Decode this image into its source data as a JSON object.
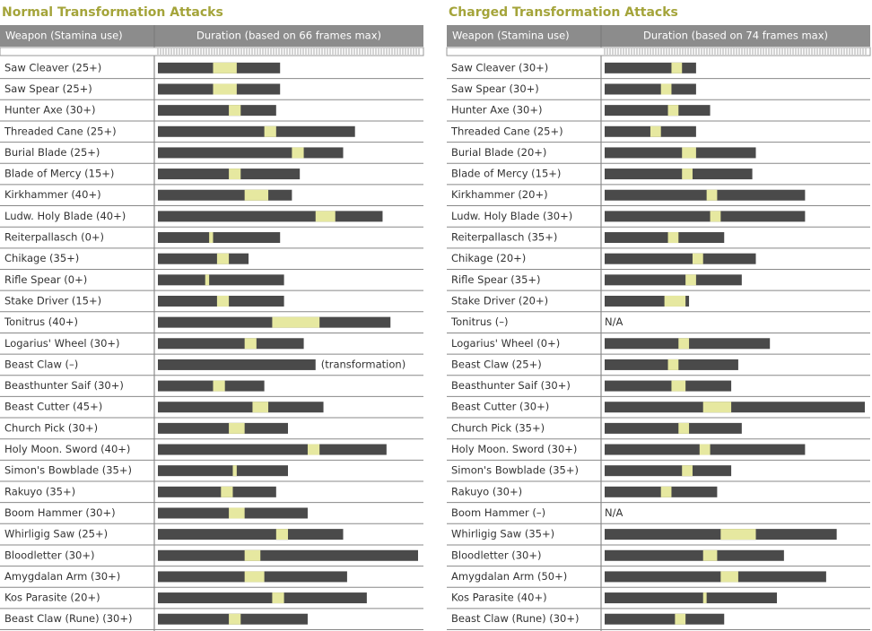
{
  "panels": [
    {
      "title": "Normal Transformation Attacks",
      "headers": [
        "Weapon (Stamina use)",
        "Duration (based on 66 frames max)"
      ],
      "xlim": [
        0,
        66
      ],
      "rows": [
        {
          "weapon": "Saw Cleaver (25+)",
          "total": 31,
          "active": [
            14,
            20
          ]
        },
        {
          "weapon": "Saw Spear (25+)",
          "total": 31,
          "active": [
            14,
            20
          ]
        },
        {
          "weapon": "Hunter Axe (30+)",
          "total": 30,
          "active": [
            18,
            21
          ]
        },
        {
          "weapon": "Threaded Cane (25+)",
          "total": 50,
          "active": [
            27,
            30
          ]
        },
        {
          "weapon": "Burial Blade (25+)",
          "total": 47,
          "active": [
            34,
            37
          ]
        },
        {
          "weapon": "Blade of Mercy (15+)",
          "total": 36,
          "active": [
            18,
            21
          ]
        },
        {
          "weapon": "Kirkhammer (40+)",
          "total": 34,
          "active": [
            22,
            28
          ]
        },
        {
          "weapon": "Ludw. Holy Blade (40+)",
          "total": 57,
          "active": [
            40,
            45
          ]
        },
        {
          "weapon": "Reiterpallasch (0+)",
          "total": 31,
          "active": [
            13,
            14
          ]
        },
        {
          "weapon": "Chikage (35+)",
          "total": 23,
          "active": [
            15,
            18
          ]
        },
        {
          "weapon": "Rifle Spear (0+)",
          "total": 32,
          "active": [
            12,
            13
          ]
        },
        {
          "weapon": "Stake Driver (15+)",
          "total": 32,
          "active": [
            15,
            18
          ]
        },
        {
          "weapon": "Tonitrus (40+)",
          "total": 59,
          "active": [
            29,
            41
          ]
        },
        {
          "weapon": "Logarius' Wheel (30+)",
          "total": 37,
          "active": [
            22,
            25
          ]
        },
        {
          "weapon": "Beast Claw (–)",
          "total": 40,
          "note": "(transformation)"
        },
        {
          "weapon": "Beasthunter Saif (30+)",
          "total": 27,
          "active": [
            14,
            17
          ]
        },
        {
          "weapon": "Beast Cutter (45+)",
          "total": 42,
          "active": [
            24,
            28
          ]
        },
        {
          "weapon": "Church Pick (30+)",
          "total": 33,
          "active": [
            18,
            22
          ]
        },
        {
          "weapon": "Holy Moon. Sword (40+)",
          "total": 58,
          "active": [
            38,
            41
          ]
        },
        {
          "weapon": "Simon's Bowblade (35+)",
          "total": 33,
          "active": [
            19,
            20
          ]
        },
        {
          "weapon": "Rakuyo (35+)",
          "total": 30,
          "active": [
            16,
            19
          ]
        },
        {
          "weapon": "Boom Hammer (30+)",
          "total": 38,
          "active": [
            18,
            22
          ]
        },
        {
          "weapon": "Whirligig Saw (25+)",
          "total": 47,
          "active": [
            30,
            33
          ]
        },
        {
          "weapon": "Bloodletter (30+)",
          "total": 66,
          "active": [
            22,
            26
          ]
        },
        {
          "weapon": "Amygdalan Arm (30+)",
          "total": 48,
          "active": [
            22,
            27
          ]
        },
        {
          "weapon": "Kos Parasite (20+)",
          "total": 53,
          "active": [
            29,
            32
          ]
        },
        {
          "weapon": "Beast Claw (Rune) (30+)",
          "total": 38,
          "active": [
            18,
            21
          ]
        }
      ]
    },
    {
      "title": "Charged Transformation Attacks",
      "headers": [
        "Weapon (Stamina use)",
        "Duration (based on 74 frames max)"
      ],
      "xlim": [
        0,
        74
      ],
      "rows": [
        {
          "weapon": "Saw Cleaver (30+)",
          "total": 26,
          "active": [
            19,
            22
          ]
        },
        {
          "weapon": "Saw Spear (30+)",
          "total": 26,
          "active": [
            16,
            19
          ]
        },
        {
          "weapon": "Hunter Axe (30+)",
          "total": 30,
          "active": [
            18,
            21
          ]
        },
        {
          "weapon": "Threaded Cane (25+)",
          "total": 26,
          "active": [
            13,
            16
          ]
        },
        {
          "weapon": "Burial Blade (20+)",
          "total": 43,
          "active": [
            22,
            26
          ]
        },
        {
          "weapon": "Blade of Mercy (15+)",
          "total": 42,
          "active": [
            22,
            25
          ]
        },
        {
          "weapon": "Kirkhammer (20+)",
          "total": 57,
          "active": [
            29,
            32
          ]
        },
        {
          "weapon": "Ludw. Holy Blade (30+)",
          "total": 57,
          "active": [
            30,
            33
          ]
        },
        {
          "weapon": "Reiterpallasch (35+)",
          "total": 34,
          "active": [
            18,
            21
          ]
        },
        {
          "weapon": "Chikage (20+)",
          "total": 43,
          "active": [
            25,
            28
          ]
        },
        {
          "weapon": "Rifle Spear (35+)",
          "total": 39,
          "active": [
            23,
            26
          ]
        },
        {
          "weapon": "Stake Driver (20+)",
          "total": 24,
          "active": [
            17,
            23
          ]
        },
        {
          "weapon": "Tonitrus (–)",
          "note": "N/A"
        },
        {
          "weapon": "Logarius' Wheel (0+)",
          "total": 47,
          "active": [
            21,
            24
          ]
        },
        {
          "weapon": "Beast Claw (25+)",
          "total": 38,
          "active": [
            18,
            21
          ]
        },
        {
          "weapon": "Beasthunter Saif (30+)",
          "total": 36,
          "active": [
            19,
            23
          ]
        },
        {
          "weapon": "Beast Cutter (30+)",
          "total": 74,
          "active": [
            28,
            36
          ]
        },
        {
          "weapon": "Church Pick (35+)",
          "total": 39,
          "active": [
            21,
            24
          ]
        },
        {
          "weapon": "Holy Moon. Sword (30+)",
          "total": 57,
          "active": [
            27,
            30
          ]
        },
        {
          "weapon": "Simon's Bowblade (35+)",
          "total": 36,
          "active": [
            22,
            25
          ]
        },
        {
          "weapon": "Rakuyo (30+)",
          "total": 32,
          "active": [
            16,
            19
          ]
        },
        {
          "weapon": "Boom Hammer (–)",
          "note": "N/A"
        },
        {
          "weapon": "Whirligig Saw (35+)",
          "total": 66,
          "active": [
            33,
            43
          ]
        },
        {
          "weapon": "Bloodletter (30+)",
          "total": 51,
          "active": [
            28,
            32
          ]
        },
        {
          "weapon": "Amygdalan Arm (50+)",
          "total": 63,
          "active": [
            33,
            38
          ]
        },
        {
          "weapon": "Kos Parasite (40+)",
          "total": 49,
          "active": [
            28,
            29
          ]
        },
        {
          "weapon": "Beast Claw (Rune) (30+)",
          "total": 34,
          "active": [
            20,
            23
          ]
        }
      ]
    }
  ]
}
